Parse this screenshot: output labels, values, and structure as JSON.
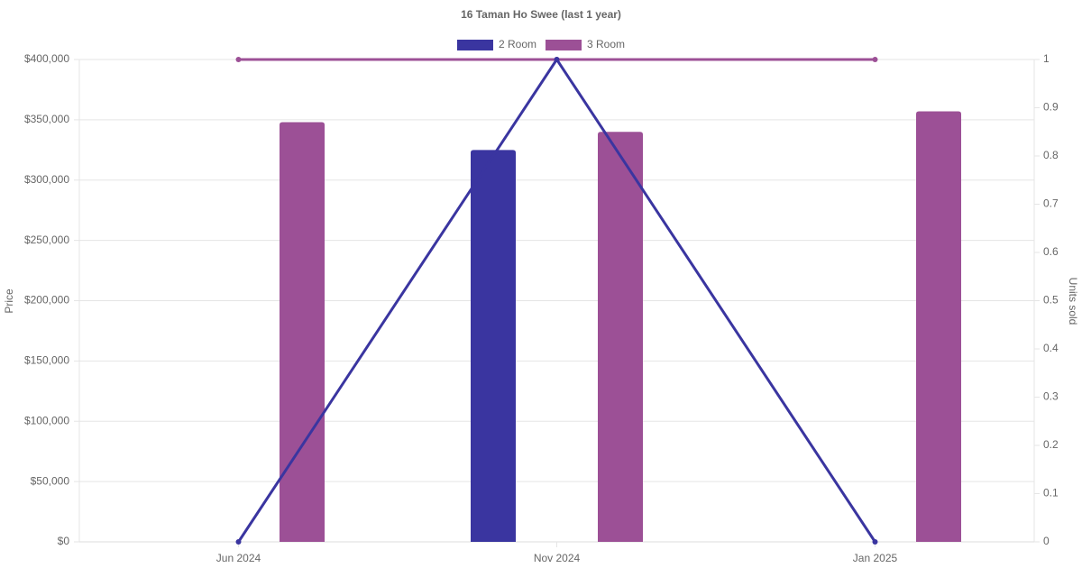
{
  "chart_data": {
    "type": "bar-line",
    "title": "16 Taman Ho Swee (last 1 year)",
    "y_label": "Price",
    "y2_label": "Units sold",
    "categories": [
      "Jun 2024",
      "Nov 2024",
      "Jan 2025"
    ],
    "series": [
      {
        "name": "2 Room",
        "color": "#3a35a0",
        "values": [
          null,
          325000,
          null
        ],
        "units_sold": [
          0,
          1,
          0
        ]
      },
      {
        "name": "3 Room",
        "color": "#9c5096",
        "values": [
          348000,
          340000,
          357000
        ],
        "units_sold": [
          1,
          1,
          1
        ]
      }
    ],
    "ylim": [
      0,
      400000
    ],
    "yticks": [
      {
        "value": 0,
        "label": "$0"
      },
      {
        "value": 50000,
        "label": "$50,000"
      },
      {
        "value": 100000,
        "label": "$100,000"
      },
      {
        "value": 150000,
        "label": "$150,000"
      },
      {
        "value": 200000,
        "label": "$200,000"
      },
      {
        "value": 250000,
        "label": "$250,000"
      },
      {
        "value": 300000,
        "label": "$300,000"
      },
      {
        "value": 350000,
        "label": "$350,000"
      },
      {
        "value": 400000,
        "label": "$400,000"
      }
    ],
    "y2lim": [
      0,
      1
    ],
    "y2ticks": [
      0,
      0.1,
      0.2,
      0.3,
      0.4,
      0.5,
      0.6,
      0.7,
      0.8,
      0.9,
      1
    ],
    "grid": true
  }
}
